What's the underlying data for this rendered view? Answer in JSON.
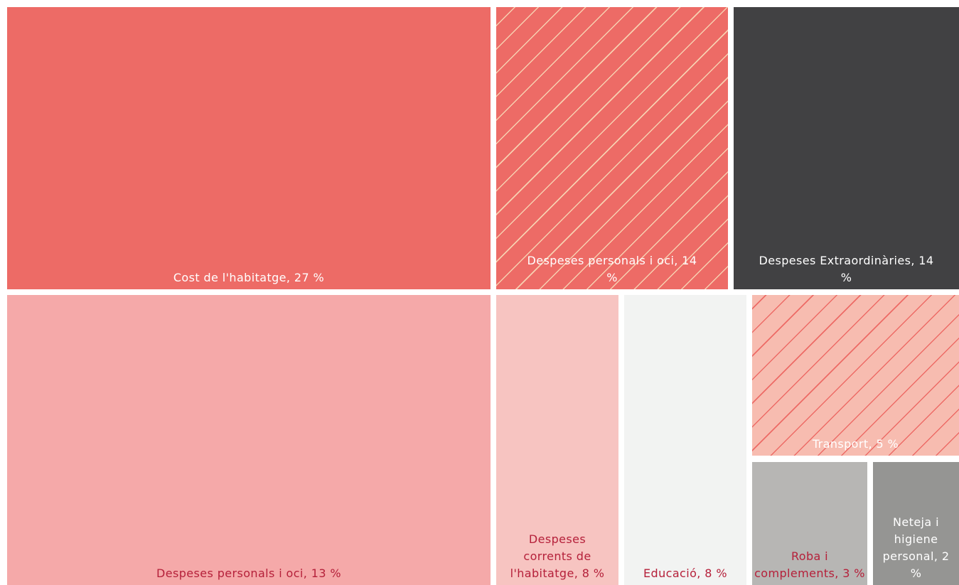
{
  "chart_data": {
    "type": "treemap",
    "categories": [
      "Cost de l'habitatge, 27 %",
      "Despeses personals i oci, 14 %",
      "Despeses Extraordinàries, 14 %",
      "Despeses personals i oci, 13 %",
      "Despeses corrents de l'habitatge, 8 %",
      "Educació, 8 %",
      "Transport, 5 %",
      "Roba i complements, 3 %",
      "Neteja i higiene personal, 2 %"
    ],
    "values": [
      27,
      14,
      14,
      13,
      8,
      8,
      5,
      3,
      2
    ],
    "colors": [
      "#ed6b66",
      "#ed6b66",
      "#414143",
      "#f5a9a9",
      "#f7c4c1",
      "#f2f3f2",
      "#f7bcb0",
      "#b7b6b4",
      "#959593"
    ],
    "hatched": [
      false,
      true,
      false,
      false,
      false,
      false,
      true,
      false,
      false
    ]
  }
}
